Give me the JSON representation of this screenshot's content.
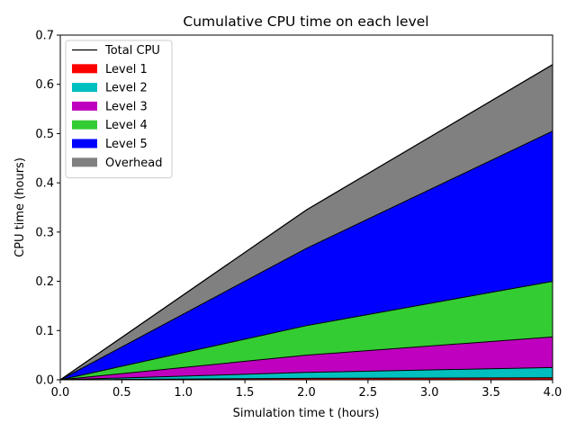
{
  "chart_data": {
    "type": "area",
    "title": "Cumulative CPU time on each level",
    "xlabel": "Simulation time t (hours)",
    "ylabel": "CPU time (hours)",
    "xlim": [
      0,
      4
    ],
    "ylim": [
      0,
      0.7
    ],
    "x_ticks": [
      "0.0",
      "0.5",
      "1.0",
      "1.5",
      "2.0",
      "2.5",
      "3.0",
      "3.5",
      "4.0"
    ],
    "y_ticks": [
      "0.0",
      "0.1",
      "0.2",
      "0.3",
      "0.4",
      "0.5",
      "0.6",
      "0.7"
    ],
    "x": [
      0,
      2,
      4
    ],
    "stacked": true,
    "series": [
      {
        "name": "Level 1",
        "color": "#ff0000",
        "values": [
          0,
          0.003,
          0.004
        ]
      },
      {
        "name": "Level 2",
        "color": "#00bfbf",
        "values": [
          0,
          0.012,
          0.021
        ]
      },
      {
        "name": "Level 3",
        "color": "#bf00bf",
        "values": [
          0,
          0.035,
          0.062
        ]
      },
      {
        "name": "Level 4",
        "color": "#33cc33",
        "values": [
          0,
          0.06,
          0.113
        ]
      },
      {
        "name": "Level 5",
        "color": "#0000ff",
        "values": [
          0,
          0.157,
          0.305
        ]
      },
      {
        "name": "Overhead",
        "color": "#808080",
        "values": [
          0,
          0.078,
          0.135
        ]
      }
    ],
    "total_line": {
      "name": "Total CPU",
      "color": "#000000",
      "values": [
        0,
        0.345,
        0.64
      ]
    },
    "legend_position": "upper-left",
    "grid": false
  }
}
